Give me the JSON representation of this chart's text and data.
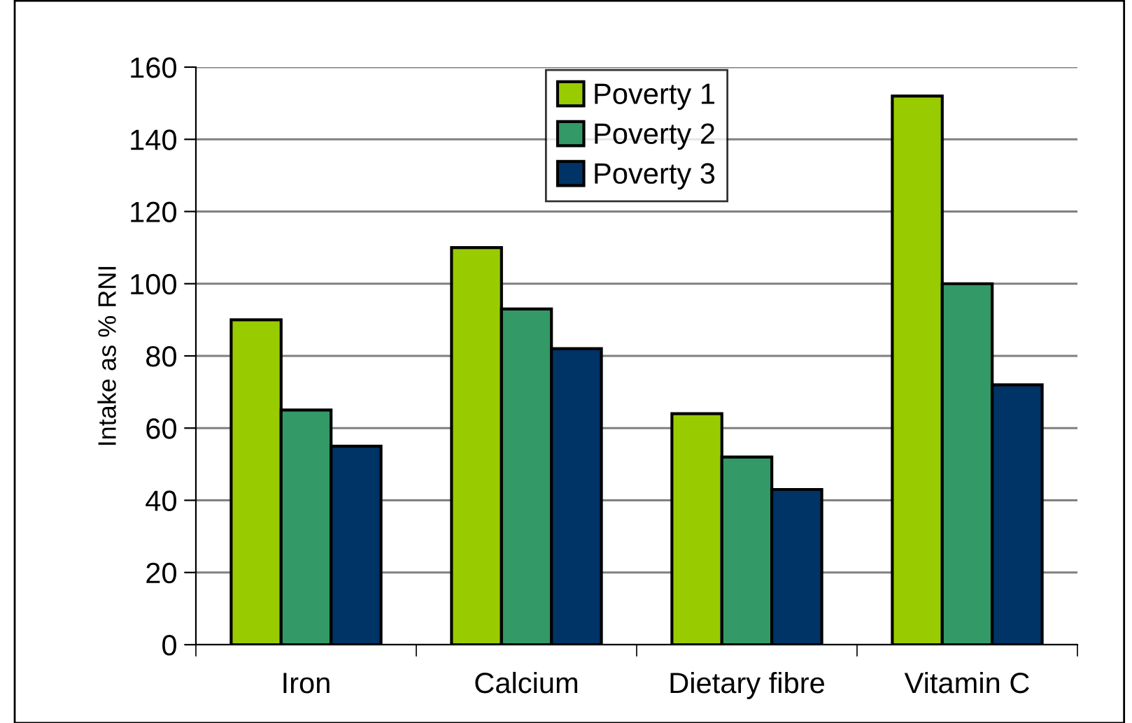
{
  "chart_data": {
    "type": "bar",
    "ylabel": "Intake as % RNI",
    "categories": [
      "Iron",
      "Calcium",
      "Dietary fibre",
      "Vitamin C"
    ],
    "series": [
      {
        "name": "Poverty 1",
        "color": "#99cc00",
        "values": [
          90,
          110,
          64,
          152
        ]
      },
      {
        "name": "Poverty 2",
        "color": "#339966",
        "values": [
          65,
          93,
          52,
          100
        ]
      },
      {
        "name": "Poverty 3",
        "color": "#003366",
        "values": [
          55,
          82,
          43,
          72
        ]
      }
    ],
    "ylim": [
      0,
      160
    ],
    "yticks": [
      0,
      20,
      40,
      60,
      80,
      100,
      120,
      140,
      160
    ],
    "grid": "y",
    "legend": "top"
  }
}
